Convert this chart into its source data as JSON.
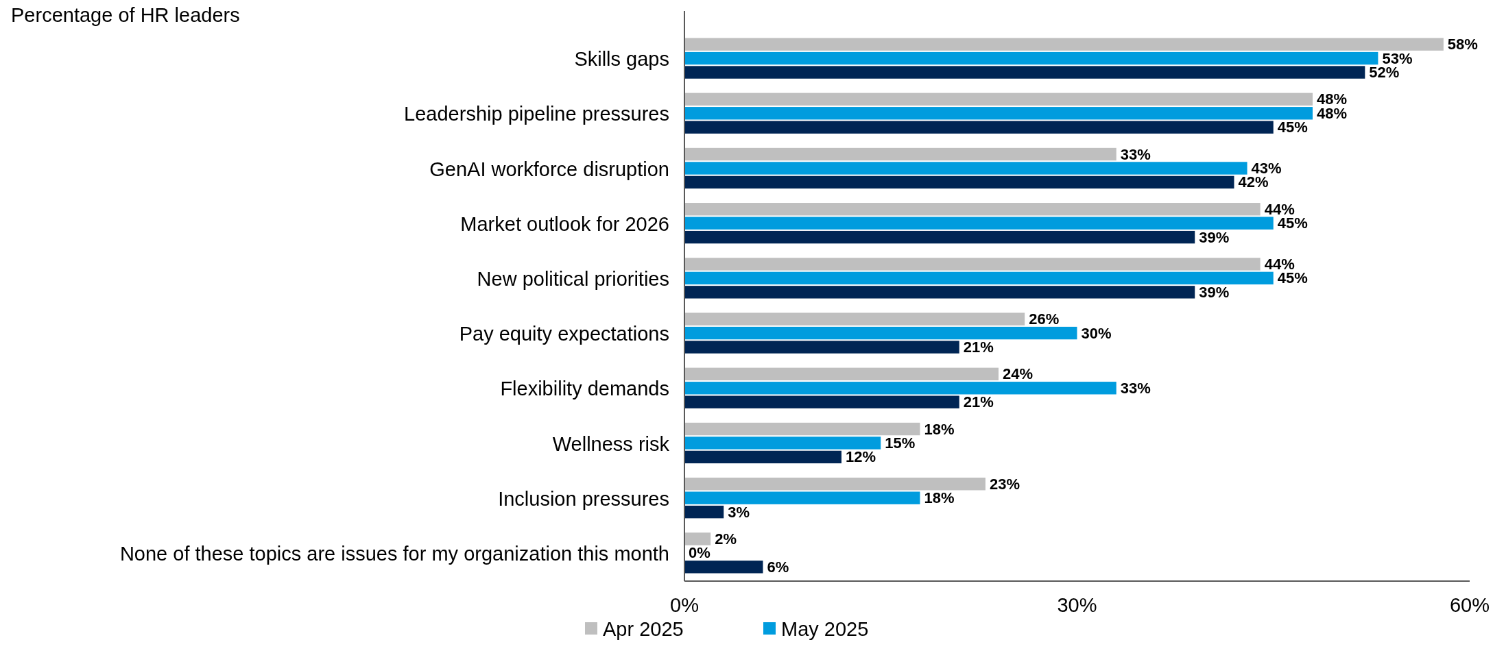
{
  "chart_data": {
    "type": "bar",
    "orientation": "horizontal",
    "title": "Percentage of HR leaders",
    "categories": [
      "Skills gaps",
      "Leadership pipeline pressures",
      "GenAI workforce disruption",
      "Market outlook for 2026",
      "New political priorities",
      "Pay equity expectations",
      "Flexibility demands",
      "Wellness risk",
      "Inclusion pressures",
      "None of these topics are issues for my organization this month"
    ],
    "series": [
      {
        "name": "Apr 2025",
        "color": "#bfbfbf",
        "values": [
          58,
          48,
          33,
          44,
          44,
          26,
          24,
          18,
          23,
          2
        ],
        "value_labels": [
          "58%",
          "48%",
          "33%",
          "44%",
          "44%",
          "26%",
          "24%",
          "18%",
          "23%",
          "2%"
        ]
      },
      {
        "name": "May 2025",
        "color": "#009cde",
        "values": [
          53,
          48,
          43,
          45,
          45,
          30,
          33,
          15,
          18,
          0
        ],
        "value_labels": [
          "53%",
          "48%",
          "43%",
          "45%",
          "45%",
          "30%",
          "33%",
          "15%",
          "18%",
          "0%"
        ]
      },
      {
        "color": "#002554",
        "values": [
          52,
          45,
          42,
          39,
          39,
          21,
          21,
          12,
          3,
          6
        ],
        "value_labels": [
          "52%",
          "45%",
          "42%",
          "39%",
          "39%",
          "21%",
          "21%",
          "12%",
          "3%",
          "6%"
        ]
      }
    ],
    "xlim": [
      0,
      60
    ],
    "xticks": [
      {
        "value": 0,
        "label": "0%"
      },
      {
        "value": 30,
        "label": "30%"
      },
      {
        "value": 60,
        "label": "60%"
      }
    ],
    "grid": false,
    "legend": "bottom"
  }
}
